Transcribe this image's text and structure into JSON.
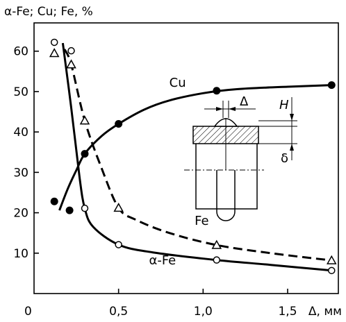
{
  "chart_data": {
    "type": "line",
    "ylabel": "α-Fe; Cu; Fe, %",
    "xlabel": "Δ, мм",
    "xlim": [
      0,
      1.8
    ],
    "ylim": [
      0,
      67
    ],
    "x_ticks": [
      {
        "value": 0,
        "label": "0"
      },
      {
        "value": 0.5,
        "label": "0,5"
      },
      {
        "value": 1.0,
        "label": "1,0"
      },
      {
        "value": 1.5,
        "label": "1,5"
      }
    ],
    "y_ticks": [
      {
        "value": 10,
        "label": "10"
      },
      {
        "value": 20,
        "label": "20"
      },
      {
        "value": 30,
        "label": "30"
      },
      {
        "value": 40,
        "label": "40"
      },
      {
        "value": 50,
        "label": "50"
      },
      {
        "value": 60,
        "label": "60"
      }
    ],
    "grid": false,
    "series": [
      {
        "name": "Cu",
        "line_style": "solid",
        "marker": "filled-circle",
        "points": [
          [
            0.12,
            22.8
          ],
          [
            0.21,
            20.6
          ],
          [
            0.3,
            34.6
          ],
          [
            0.5,
            42.0
          ],
          [
            1.08,
            50.2
          ],
          [
            1.76,
            51.6
          ]
        ],
        "curve": [
          [
            0.15,
            20.6
          ],
          [
            0.2,
            26
          ],
          [
            0.25,
            30.5
          ],
          [
            0.3,
            34.6
          ],
          [
            0.4,
            39
          ],
          [
            0.5,
            42.0
          ],
          [
            0.65,
            45.5
          ],
          [
            0.8,
            47.8
          ],
          [
            1.0,
            49.6
          ],
          [
            1.2,
            50.6
          ],
          [
            1.5,
            51.2
          ],
          [
            1.76,
            51.6
          ]
        ]
      },
      {
        "name": "Fe",
        "line_style": "dashed",
        "marker": "open-triangle",
        "points": [
          [
            0.12,
            59.5
          ],
          [
            0.22,
            56.7
          ],
          [
            0.3,
            42.8
          ],
          [
            0.5,
            21.2
          ],
          [
            1.08,
            12.0
          ],
          [
            1.76,
            8.2
          ]
        ],
        "curve": [
          [
            0.18,
            60.5
          ],
          [
            0.22,
            56.7
          ],
          [
            0.3,
            42.8
          ],
          [
            0.4,
            31
          ],
          [
            0.5,
            21.2
          ],
          [
            0.6,
            18.3
          ],
          [
            0.8,
            15
          ],
          [
            1.08,
            12.0
          ],
          [
            1.4,
            10
          ],
          [
            1.76,
            8.2
          ]
        ]
      },
      {
        "name": "α-Fe",
        "line_style": "solid",
        "marker": "open-circle",
        "points": [
          [
            0.12,
            62.2
          ],
          [
            0.22,
            60.1
          ],
          [
            0.3,
            21.1
          ],
          [
            0.5,
            12.1
          ],
          [
            1.08,
            8.3
          ],
          [
            1.76,
            5.7
          ]
        ],
        "curve": [
          [
            0.17,
            62.0
          ],
          [
            0.22,
            46
          ],
          [
            0.27,
            28.5
          ],
          [
            0.3,
            21.1
          ],
          [
            0.35,
            16.5
          ],
          [
            0.5,
            12.1
          ],
          [
            0.7,
            10.2
          ],
          [
            1.08,
            8.3
          ],
          [
            1.4,
            7.1
          ],
          [
            1.76,
            5.7
          ]
        ]
      }
    ],
    "series_labels": [
      {
        "text": "Cu",
        "x": 0.8,
        "y": 51.2
      },
      {
        "text": "Fe",
        "x": 0.95,
        "y": 17.0
      },
      {
        "text": "α-Fe",
        "x": 0.68,
        "y": 7.2
      }
    ],
    "inset": {
      "type": "weld-cross-section-diagram",
      "labels": [
        "Δ",
        "H",
        "δ"
      ]
    }
  }
}
